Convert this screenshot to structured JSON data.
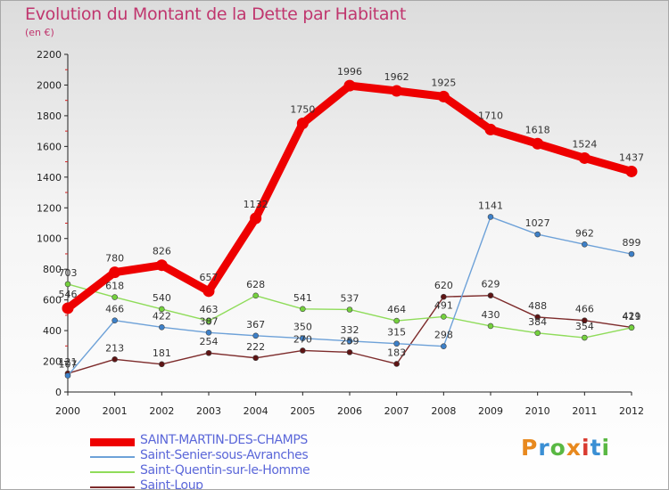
{
  "title": "Evolution du Montant de la Dette par Habitant",
  "subtitle": "(en €)",
  "logo": {
    "text": "Proxiti",
    "colors": [
      "#e8891e",
      "#3a8fd4",
      "#59b843",
      "#e8891e",
      "#d93a30",
      "#3a8fd4",
      "#59b843"
    ]
  },
  "chart_data": {
    "type": "line",
    "title": "Evolution du Montant de la Dette par Habitant",
    "ylabel": "(en €)",
    "categories": [
      "2000",
      "2001",
      "2002",
      "2003",
      "2004",
      "2005",
      "2006",
      "2007",
      "2008",
      "2009",
      "2010",
      "2011",
      "2012"
    ],
    "ylim": [
      0,
      2200
    ],
    "yticks": [
      0,
      200,
      400,
      600,
      800,
      1000,
      1200,
      1400,
      1600,
      1800,
      2000,
      2200
    ],
    "series": [
      {
        "name": "SAINT-MARTIN-DES-CHAMPS",
        "color": "#ee0000",
        "marker": "#ee0000",
        "values": [
          546,
          780,
          826,
          657,
          1132,
          1750,
          1996,
          1962,
          1925,
          1710,
          1618,
          1524,
          1437
        ]
      },
      {
        "name": "Saint-Senier-sous-Avranches",
        "color": "#6da1d8",
        "marker": "#3d80c8",
        "values": [
          107,
          466,
          422,
          387,
          367,
          350,
          332,
          315,
          298,
          1141,
          1027,
          962,
          899
        ]
      },
      {
        "name": "Saint-Quentin-sur-le-Homme",
        "color": "#8fdc5a",
        "marker": "#74d13d",
        "values": [
          703,
          618,
          540,
          463,
          628,
          541,
          537,
          464,
          491,
          430,
          384,
          354,
          419
        ]
      },
      {
        "name": "Saint-Loup",
        "color": "#7d2b2b",
        "marker": "#5e1414",
        "values": [
          121,
          213,
          181,
          254,
          222,
          270,
          259,
          183,
          620,
          629,
          488,
          466,
          421
        ]
      }
    ]
  }
}
